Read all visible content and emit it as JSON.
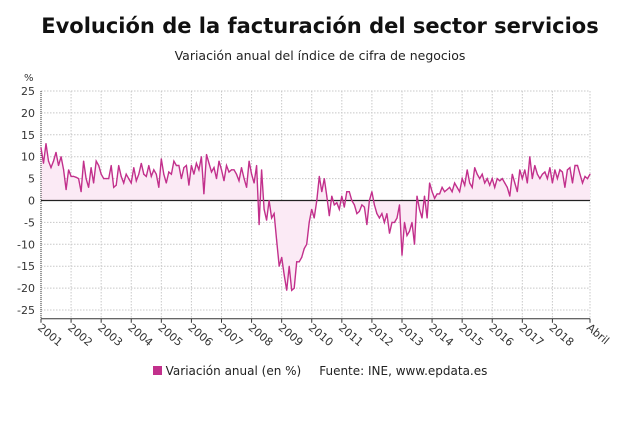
{
  "chart_data": {
    "type": "area",
    "title": "Evolución de la facturación del sector servicios",
    "subtitle": "Variación anual del índice de cifra de negocios",
    "ylabel": "%",
    "ylim": [
      -27,
      25
    ],
    "yticks": [
      25,
      20,
      15,
      10,
      5,
      0,
      -5,
      -10,
      -15,
      -20,
      -25
    ],
    "xtick_labels": [
      "2001",
      "2002",
      "2003",
      "2004",
      "2005",
      "2006",
      "2007",
      "2008",
      "2009",
      "2010",
      "2011",
      "2012",
      "2013",
      "2014",
      "2015",
      "2016",
      "2017",
      "2018",
      "Abril"
    ],
    "grid": true,
    "legend_position": "bottom",
    "colors": {
      "line": "#c2308c",
      "fill": "#fbeaf5",
      "zero_line": "#222222"
    },
    "series": [
      {
        "name": "Variación anual (en %)",
        "monthly_by_year": [
          {
            "year": 2001,
            "values": [
              12,
              8.5,
              13,
              9,
              7.5,
              9,
              11,
              8,
              10,
              7,
              2.5,
              7
            ]
          },
          {
            "year": 2002,
            "values": [
              5.5,
              5.5,
              5.3,
              5,
              2,
              9,
              5,
              3,
              7.5,
              4,
              9,
              8
            ]
          },
          {
            "year": 2003,
            "values": [
              6,
              5,
              5,
              5,
              8,
              3,
              3.5,
              8,
              5.5,
              4,
              6,
              5
            ]
          },
          {
            "year": 2004,
            "values": [
              4,
              7.5,
              4.5,
              6,
              8.5,
              6,
              5.5,
              8,
              5.5,
              7,
              6,
              3
            ]
          },
          {
            "year": 2005,
            "values": [
              9.5,
              6,
              4,
              6.5,
              6,
              9,
              8,
              8,
              5,
              7.5,
              8,
              3.5
            ]
          },
          {
            "year": 2006,
            "values": [
              8,
              6,
              8.5,
              7,
              10,
              1.5,
              10.5,
              8.5,
              6.5,
              7.5,
              5,
              9
            ]
          },
          {
            "year": 2007,
            "values": [
              7,
              4.5,
              8,
              6.5,
              7,
              7,
              6,
              4.5,
              7.5,
              5,
              3,
              9
            ]
          },
          {
            "year": 2008,
            "values": [
              6,
              4,
              8,
              -5.5,
              7,
              -2,
              -4.5,
              0,
              -4,
              -3,
              -9,
              -15
            ]
          },
          {
            "year": 2009,
            "values": [
              -13,
              -17,
              -20.5,
              -15,
              -20.5,
              -20,
              -14,
              -14,
              -13,
              -11,
              -10,
              -5
            ]
          },
          {
            "year": 2010,
            "values": [
              -2,
              -4,
              0,
              5.5,
              2,
              5,
              1,
              -3.5,
              1,
              -1,
              -0.5,
              -2
            ]
          },
          {
            "year": 2011,
            "values": [
              1,
              -1.5,
              2,
              2,
              0,
              -1,
              -3,
              -2.5,
              -1,
              -1.5,
              -5.5,
              0
            ]
          },
          {
            "year": 2012,
            "values": [
              2,
              -1,
              -3,
              -4,
              -3,
              -5,
              -3,
              -7.5,
              -5,
              -5,
              -4,
              -1
            ]
          },
          {
            "year": 2013,
            "values": [
              -12.5,
              -5,
              -8,
              -7,
              -5,
              -10,
              1,
              -2,
              -4,
              1,
              -4,
              4
            ]
          },
          {
            "year": 2014,
            "values": [
              2,
              0.5,
              1.5,
              1.5,
              3,
              2,
              2.5,
              3,
              2,
              4,
              3,
              2
            ]
          },
          {
            "year": 2015,
            "values": [
              5,
              3.5,
              7,
              4,
              3,
              7.5,
              6,
              5,
              6,
              4,
              5,
              3.5
            ]
          },
          {
            "year": 2016,
            "values": [
              5,
              3,
              5,
              4.5,
              5,
              4,
              3,
              1,
              6,
              4,
              2,
              7
            ]
          },
          {
            "year": 2017,
            "values": [
              5,
              7,
              4,
              10,
              5,
              8,
              6,
              5,
              6,
              6.5,
              5,
              7.5
            ]
          },
          {
            "year": 2018,
            "values": [
              4,
              7,
              5,
              7,
              6.5,
              3,
              7,
              7.5,
              4,
              8,
              8,
              6
            ]
          },
          {
            "year": 2019,
            "values": [
              4,
              5.5,
              5,
              6
            ]
          }
        ]
      }
    ],
    "source": "Fuente: INE, www.epdata.es"
  }
}
